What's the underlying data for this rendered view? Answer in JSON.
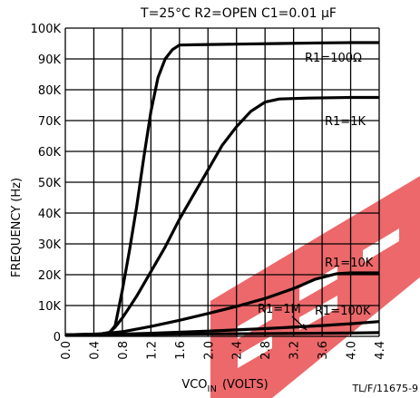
{
  "chart_data": {
    "type": "line",
    "title": "T=25°C  R2=OPEN  C1=0.01 µF",
    "xlabel_main": "VCO",
    "xlabel_sub": "IN",
    "xlabel_units": "(VOLTS)",
    "ylabel": "FREQUENCY (Hz)",
    "xlim": [
      0,
      4.4
    ],
    "ylim": [
      0,
      100
    ],
    "x_ticks": [
      0.0,
      0.4,
      0.8,
      1.2,
      1.6,
      2.0,
      2.4,
      2.8,
      3.2,
      3.6,
      4.0,
      4.4
    ],
    "x_tick_labels": [
      "0.0",
      "0.4",
      "0.8",
      "1.2",
      "1.6",
      "2.0",
      "2.4",
      "2.8",
      "3.2",
      "3.6",
      "4.0",
      "4.4"
    ],
    "y_ticks": [
      0,
      10,
      20,
      30,
      40,
      50,
      60,
      70,
      80,
      90,
      100
    ],
    "y_tick_labels": [
      "0",
      "10K",
      "20K",
      "30K",
      "40K",
      "50K",
      "60K",
      "70K",
      "80K",
      "90K",
      "100K"
    ],
    "grid": true,
    "series": [
      {
        "name": "R1=100Ω",
        "points": [
          [
            0.0,
            0.5
          ],
          [
            0.5,
            0.8
          ],
          [
            0.62,
            1.2
          ],
          [
            0.7,
            3.5
          ],
          [
            0.8,
            15
          ],
          [
            0.9,
            28
          ],
          [
            1.0,
            42
          ],
          [
            1.1,
            58
          ],
          [
            1.2,
            73
          ],
          [
            1.3,
            84
          ],
          [
            1.4,
            90
          ],
          [
            1.5,
            93
          ],
          [
            1.6,
            94.5
          ],
          [
            1.8,
            94.6
          ],
          [
            2.4,
            94.8
          ],
          [
            3.0,
            95
          ],
          [
            3.6,
            95.2
          ],
          [
            4.0,
            95.3
          ],
          [
            4.4,
            95.3
          ]
        ]
      },
      {
        "name": "R1=1K",
        "points": [
          [
            0.0,
            0.5
          ],
          [
            0.5,
            0.8
          ],
          [
            0.62,
            1.3
          ],
          [
            0.7,
            3
          ],
          [
            0.8,
            6
          ],
          [
            0.9,
            9.5
          ],
          [
            1.0,
            13
          ],
          [
            1.2,
            21
          ],
          [
            1.4,
            29
          ],
          [
            1.6,
            38
          ],
          [
            1.8,
            46
          ],
          [
            2.0,
            54
          ],
          [
            2.2,
            62
          ],
          [
            2.4,
            68
          ],
          [
            2.6,
            73
          ],
          [
            2.8,
            76
          ],
          [
            3.0,
            77
          ],
          [
            3.4,
            77.3
          ],
          [
            4.0,
            77.5
          ],
          [
            4.4,
            77.5
          ]
        ]
      },
      {
        "name": "R1=10K",
        "points": [
          [
            0.0,
            0.5
          ],
          [
            0.4,
            0.6
          ],
          [
            0.8,
            1.5
          ],
          [
            1.2,
            3.2
          ],
          [
            1.6,
            5.2
          ],
          [
            2.0,
            7.4
          ],
          [
            2.4,
            9.7
          ],
          [
            2.8,
            12.3
          ],
          [
            3.2,
            15.5
          ],
          [
            3.5,
            18.5
          ],
          [
            3.8,
            20.3
          ],
          [
            4.0,
            20.6
          ],
          [
            4.2,
            20.6
          ],
          [
            4.4,
            20.6
          ]
        ]
      },
      {
        "name": "R1=100K",
        "points": [
          [
            0.0,
            0.5
          ],
          [
            0.6,
            0.6
          ],
          [
            1.2,
            1.0
          ],
          [
            2.0,
            1.7
          ],
          [
            2.8,
            2.5
          ],
          [
            3.6,
            3.5
          ],
          [
            4.0,
            4.1
          ],
          [
            4.4,
            4.8
          ]
        ]
      },
      {
        "name": "R1=1M",
        "points": [
          [
            0.0,
            0.5
          ],
          [
            1.0,
            0.6
          ],
          [
            2.0,
            0.8
          ],
          [
            3.0,
            0.9
          ],
          [
            4.0,
            1.1
          ],
          [
            4.4,
            1.2
          ]
        ]
      }
    ],
    "annotations": [
      {
        "text": "R1=100Ω",
        "series": 0
      },
      {
        "text": "R1=1K",
        "series": 1
      },
      {
        "text": "R1=10K",
        "series": 2
      },
      {
        "text": "R1=100K",
        "series": 3
      },
      {
        "text": "R1=1M",
        "series": 4
      }
    ],
    "footer": "TL/F/11675-9"
  },
  "colors": {
    "line": "#000000",
    "grid": "#000000",
    "background": "#ffffff",
    "watermark": "#e8474a"
  }
}
